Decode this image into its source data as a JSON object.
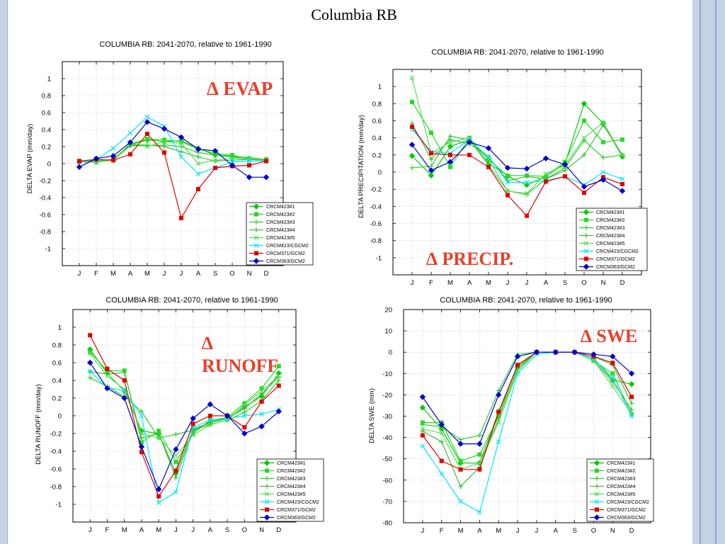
{
  "slide": {
    "title": "Columbia RB"
  },
  "panels": [
    {
      "header": "COLUMBIA RB: 2041-2070, relative to 1961-1990",
      "overlay": "∆ EVAP",
      "ylabel": "DELTA EVAP (mm/day)"
    },
    {
      "header": "COLUMBIA RB: 2041-2070, relative to 1961-1990",
      "overlay": "∆ PRECIP.",
      "ylabel": "DELTA PRECIPITATION (mm/day)"
    },
    {
      "header": "COLUMBIA RB: 2041-2070, relative to 1961-1990",
      "overlay": "∆ RUNOFF",
      "ylabel": "DELTA RUNOFF (mm/day)"
    },
    {
      "header": "COLUMBIA RB: 2041-2070, relative to 1961-1990",
      "overlay": "∆ SWE",
      "ylabel": "DELTA SWE (mm)"
    }
  ],
  "chart_data": [
    {
      "type": "line",
      "title": "COLUMBIA RB: 2041-2070, relative to 1961-1990",
      "xlabel": "",
      "ylabel": "DELTA EVAP (mm/day)",
      "categories": [
        "J",
        "F",
        "M",
        "A",
        "M",
        "J",
        "J",
        "A",
        "S",
        "O",
        "N",
        "D"
      ],
      "ylim": [
        -1.2,
        1.2
      ],
      "yticks": [
        -1,
        -0.8,
        -0.6,
        -0.4,
        -0.2,
        0,
        0.2,
        0.4,
        0.6,
        0.8,
        1
      ],
      "grid": true,
      "legend_position": "bottom-right",
      "series": [
        {
          "name": "CRCM423#1",
          "color": "#00cc00",
          "marker": "diamond",
          "values": [
            0.02,
            0.02,
            0.04,
            0.22,
            0.28,
            0.26,
            0.27,
            0.18,
            0.1,
            0.08,
            0.05,
            0.04
          ]
        },
        {
          "name": "CRCM423#2",
          "color": "#22dd22",
          "marker": "square",
          "values": [
            0.03,
            0.03,
            0.05,
            0.23,
            0.29,
            0.28,
            0.26,
            0.17,
            0.12,
            0.1,
            0.06,
            0.05
          ]
        },
        {
          "name": "CRCM423#3",
          "color": "#33cc33",
          "marker": "plus",
          "values": [
            0.02,
            0.03,
            0.04,
            0.21,
            0.21,
            0.22,
            0.2,
            0.13,
            0.1,
            0.09,
            0.07,
            0.05
          ]
        },
        {
          "name": "CRCM423#4",
          "color": "#44bb44",
          "marker": "plus",
          "values": [
            0.02,
            0.02,
            0.05,
            0.22,
            0.22,
            0.2,
            0.14,
            0.08,
            0.03,
            0.04,
            0.05,
            0.04
          ]
        },
        {
          "name": "CRCM423#5",
          "color": "#55dd55",
          "marker": "x",
          "values": [
            0.03,
            0.02,
            0.04,
            0.24,
            0.2,
            0.26,
            0.24,
            0.0,
            0.04,
            0.06,
            0.06,
            0.05
          ]
        },
        {
          "name": "CRCM423/CGCM2",
          "color": "#00e5ff",
          "marker": "x",
          "values": [
            0.02,
            0.05,
            0.18,
            0.36,
            0.55,
            0.44,
            0.08,
            -0.12,
            -0.05,
            0.02,
            0.03,
            0.03
          ]
        },
        {
          "name": "CRCM371/GCM2",
          "color": "#e00000",
          "marker": "square",
          "values": [
            0.03,
            0.05,
            0.04,
            0.11,
            0.35,
            0.13,
            -0.64,
            -0.3,
            -0.05,
            -0.03,
            -0.02,
            0.03
          ]
        },
        {
          "name": "CRCM363/GCM2",
          "color": "#0000cc",
          "marker": "diamond",
          "values": [
            -0.04,
            0.06,
            0.09,
            0.25,
            0.49,
            0.41,
            0.31,
            0.17,
            0.15,
            -0.02,
            -0.16,
            -0.16
          ]
        }
      ]
    },
    {
      "type": "line",
      "title": "COLUMBIA RB: 2041-2070, relative to 1961-1990",
      "xlabel": "",
      "ylabel": "DELTA PRECIPITATION (mm/day)",
      "categories": [
        "J",
        "F",
        "M",
        "A",
        "M",
        "J",
        "J",
        "A",
        "S",
        "O",
        "N",
        "D"
      ],
      "ylim": [
        -1.2,
        1.2
      ],
      "yticks": [
        -1,
        -0.8,
        -0.6,
        -0.4,
        -0.2,
        0,
        0.2,
        0.4,
        0.6,
        0.8,
        1
      ],
      "grid": true,
      "legend_position": "bottom-right",
      "series": [
        {
          "name": "CRCM423#1",
          "color": "#00cc00",
          "marker": "diamond",
          "values": [
            0.19,
            -0.04,
            0.3,
            0.38,
            0.15,
            -0.05,
            -0.15,
            -0.05,
            0.1,
            0.8,
            0.57,
            0.18
          ]
        },
        {
          "name": "CRCM423#2",
          "color": "#22dd22",
          "marker": "square",
          "values": [
            0.82,
            0.46,
            0.06,
            0.4,
            0.1,
            -0.04,
            -0.04,
            -0.05,
            0.12,
            0.6,
            0.35,
            0.38
          ]
        },
        {
          "name": "CRCM423#3",
          "color": "#33cc33",
          "marker": "plus",
          "values": [
            0.05,
            0.07,
            0.42,
            0.38,
            0.08,
            -0.22,
            -0.26,
            -0.08,
            0.05,
            0.37,
            0.17,
            0.2
          ]
        },
        {
          "name": "CRCM423#4",
          "color": "#44bb44",
          "marker": "plus",
          "values": [
            0.57,
            0.15,
            0.38,
            0.33,
            0.18,
            -0.1,
            -0.05,
            -0.08,
            0.02,
            0.2,
            0.55,
            0.2
          ]
        },
        {
          "name": "CRCM423#5",
          "color": "#55dd55",
          "marker": "x",
          "values": [
            1.1,
            0.22,
            0.35,
            0.4,
            0.15,
            -0.22,
            -0.25,
            -0.02,
            0.08,
            0.4,
            0.58,
            0.2
          ]
        },
        {
          "name": "CRCM423/CGCM2",
          "color": "#00e5ff",
          "marker": "x",
          "values": [
            0.5,
            0.24,
            0.22,
            0.38,
            0.18,
            -0.12,
            -0.12,
            -0.1,
            -0.05,
            -0.15,
            0.0,
            -0.08
          ]
        },
        {
          "name": "CRCM371/GCM2",
          "color": "#e00000",
          "marker": "square",
          "values": [
            0.53,
            0.22,
            0.2,
            0.2,
            0.06,
            -0.27,
            -0.51,
            -0.11,
            -0.05,
            -0.24,
            -0.06,
            -0.14
          ]
        },
        {
          "name": "CRCM363/GCM2",
          "color": "#0000cc",
          "marker": "diamond",
          "values": [
            0.32,
            0.02,
            0.12,
            0.35,
            0.28,
            0.05,
            0.04,
            0.16,
            0.09,
            -0.17,
            -0.09,
            -0.22
          ]
        }
      ]
    },
    {
      "type": "line",
      "title": "COLUMBIA RB: 2041-2070, relative to 1961-1990",
      "xlabel": "",
      "ylabel": "DELTA RUNOFF (mm/day)",
      "categories": [
        "J",
        "F",
        "M",
        "A",
        "M",
        "J",
        "J",
        "A",
        "S",
        "O",
        "N",
        "D"
      ],
      "ylim": [
        -1.2,
        1.2
      ],
      "yticks": [
        -1,
        -0.8,
        -0.6,
        -0.4,
        -0.2,
        0,
        0.2,
        0.4,
        0.6,
        0.8,
        1
      ],
      "grid": true,
      "legend_position": "bottom-right",
      "series": [
        {
          "name": "CRCM423#1",
          "color": "#00cc00",
          "marker": "diamond",
          "values": [
            0.75,
            0.48,
            0.28,
            -0.17,
            -0.2,
            -0.65,
            -0.15,
            -0.08,
            -0.03,
            0.1,
            0.22,
            0.48
          ]
        },
        {
          "name": "CRCM423#2",
          "color": "#22dd22",
          "marker": "square",
          "values": [
            0.72,
            0.51,
            0.51,
            -0.3,
            -0.17,
            -0.52,
            -0.2,
            -0.05,
            -0.02,
            0.14,
            0.31,
            0.56
          ]
        },
        {
          "name": "CRCM423#3",
          "color": "#33cc33",
          "marker": "plus",
          "values": [
            0.43,
            0.33,
            0.22,
            0.05,
            -0.25,
            -0.21,
            -0.16,
            -0.1,
            -0.05,
            0.04,
            0.17,
            0.4
          ]
        },
        {
          "name": "CRCM423#4",
          "color": "#44bb44",
          "marker": "plus",
          "values": [
            0.5,
            0.47,
            0.49,
            -0.25,
            -0.2,
            -0.7,
            -0.18,
            -0.06,
            -0.03,
            0.08,
            0.25,
            0.44
          ]
        },
        {
          "name": "CRCM423#5",
          "color": "#55dd55",
          "marker": "x",
          "values": [
            0.7,
            0.45,
            0.3,
            -0.2,
            -0.25,
            -0.45,
            -0.22,
            -0.1,
            -0.05,
            0.12,
            0.28,
            0.45
          ]
        },
        {
          "name": "CRCM423/CGCM2",
          "color": "#00e5ff",
          "marker": "x",
          "values": [
            0.5,
            0.32,
            0.28,
            0.0,
            -0.98,
            -0.86,
            -0.13,
            -0.05,
            -0.03,
            0.0,
            0.02,
            0.07
          ]
        },
        {
          "name": "CRCM371/GCM2",
          "color": "#e00000",
          "marker": "square",
          "values": [
            0.91,
            0.53,
            0.4,
            -0.41,
            -0.91,
            -0.62,
            -0.09,
            0.0,
            0.0,
            -0.13,
            0.16,
            0.34
          ]
        },
        {
          "name": "CRCM363/GCM2",
          "color": "#0000cc",
          "marker": "diamond",
          "values": [
            0.6,
            0.31,
            0.2,
            -0.35,
            -0.83,
            -0.38,
            -0.03,
            0.13,
            0.0,
            -0.2,
            -0.12,
            0.05
          ]
        }
      ]
    },
    {
      "type": "line",
      "title": "COLUMBIA RB: 2041-2070, relative to 1961-1990",
      "xlabel": "",
      "ylabel": "DELTA SWE (mm)",
      "categories": [
        "J",
        "F",
        "M",
        "A",
        "M",
        "J",
        "J",
        "A",
        "S",
        "O",
        "N",
        "D"
      ],
      "ylim": [
        -80,
        20
      ],
      "yticks": [
        -80,
        -70,
        -60,
        -50,
        -40,
        -30,
        -20,
        -10,
        0,
        10,
        20
      ],
      "grid": true,
      "legend_position": "bottom-right",
      "series": [
        {
          "name": "CRCM423#1",
          "color": "#00cc00",
          "marker": "diamond",
          "values": [
            -26,
            -36,
            -52,
            -52,
            -28,
            -7,
            0,
            0,
            0,
            -3,
            -13,
            -15
          ]
        },
        {
          "name": "CRCM423#2",
          "color": "#22dd22",
          "marker": "square",
          "values": [
            -33,
            -33,
            -51,
            -48,
            -30,
            -6,
            0,
            0,
            0,
            -4,
            -10,
            -29
          ]
        },
        {
          "name": "CRCM423#3",
          "color": "#33cc33",
          "marker": "plus",
          "values": [
            -34,
            -35,
            -41,
            -39,
            -18,
            -1,
            0,
            0,
            0,
            -2,
            -6,
            -24
          ]
        },
        {
          "name": "CRCM423#4",
          "color": "#44bb44",
          "marker": "plus",
          "values": [
            -37,
            -42,
            -63,
            -54,
            -31,
            -8,
            0,
            0,
            0,
            -4,
            -14,
            -27
          ]
        },
        {
          "name": "CRCM423#5",
          "color": "#55dd55",
          "marker": "x",
          "values": [
            -36,
            -38,
            -55,
            -52,
            -33,
            -9,
            0,
            0,
            0,
            -4,
            -16,
            -29
          ]
        },
        {
          "name": "CRCM423/CGCM2",
          "color": "#00e5ff",
          "marker": "x",
          "values": [
            -44,
            -57,
            -70,
            -75,
            -42,
            -10,
            -1,
            0,
            0,
            -3,
            -12,
            -30
          ]
        },
        {
          "name": "CRCM371/GCM2",
          "color": "#e00000",
          "marker": "square",
          "values": [
            -39,
            -51,
            -55,
            -55,
            -28,
            -6,
            0,
            0,
            0,
            -2,
            -5,
            -21
          ]
        },
        {
          "name": "CRCM363/GCM2",
          "color": "#0000cc",
          "marker": "diamond",
          "values": [
            -21,
            -34,
            -43,
            -43,
            -20,
            -2,
            0,
            0,
            0,
            -1,
            -2,
            -10
          ]
        }
      ]
    }
  ]
}
